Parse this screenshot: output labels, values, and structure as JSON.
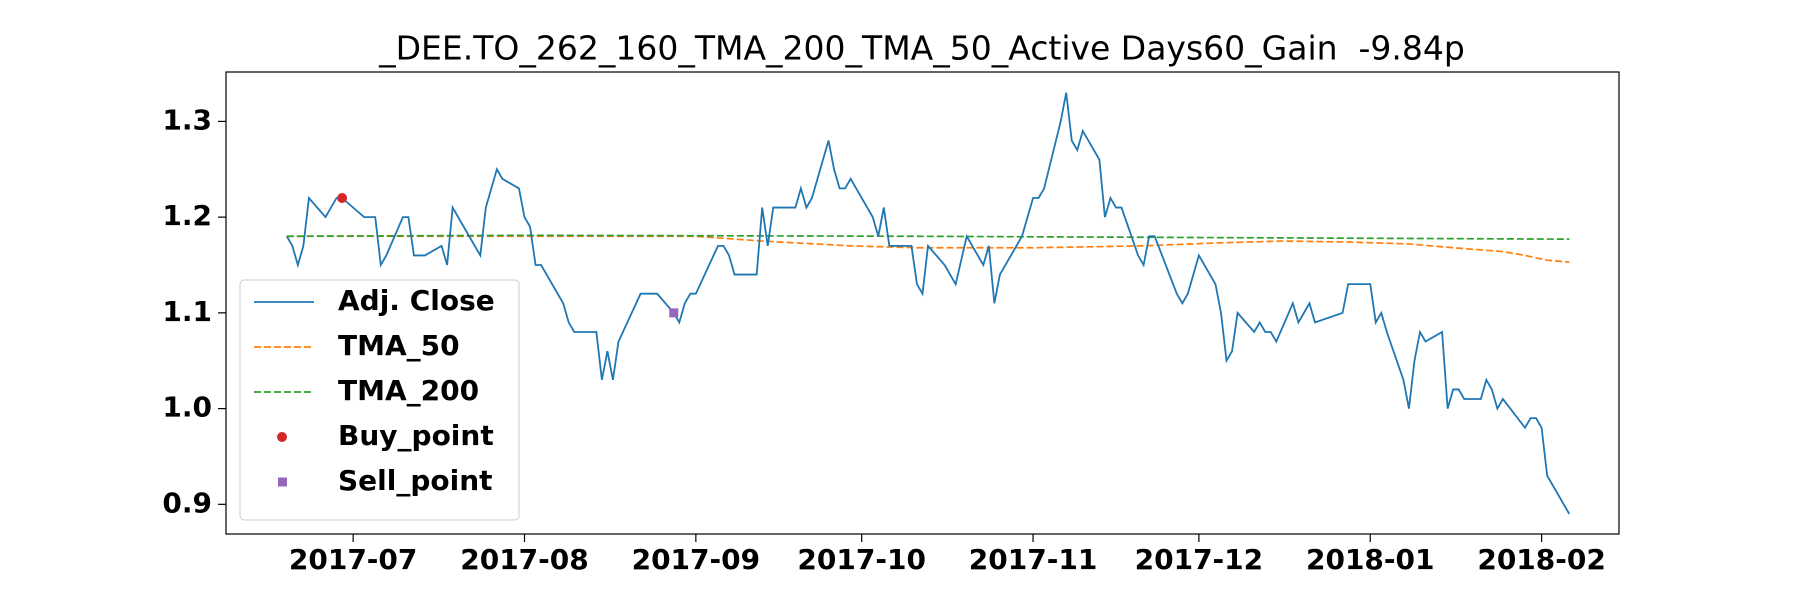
{
  "chart_data": {
    "type": "line",
    "title": "_DEE.TO_262_160_TMA_200_TMA_50_Active Days60_Gain  -9.84p",
    "xlim": [
      17325,
      17577
    ],
    "xticks": [
      {
        "value": 17348,
        "label": "2017-07"
      },
      {
        "value": 17379,
        "label": "2017-08"
      },
      {
        "value": 17410,
        "label": "2017-09"
      },
      {
        "value": 17440,
        "label": "2017-10"
      },
      {
        "value": 17471,
        "label": "2017-11"
      },
      {
        "value": 17501,
        "label": "2017-12"
      },
      {
        "value": 17532,
        "label": "2018-01"
      },
      {
        "value": 17563,
        "label": "2018-02"
      }
    ],
    "ylim": [
      0.869,
      1.3516
    ],
    "yticks": [
      0.9,
      {
        "value": 1,
        "label": "1.0"
      },
      1.1,
      1.2,
      1.3
    ],
    "grid": false,
    "legend": "lower left",
    "series": [
      {
        "name": "Adj. Close",
        "color": "#1f77b4",
        "style": "solid",
        "x": [
          17336,
          17337,
          17338,
          17339,
          17340,
          17343,
          17345,
          17346,
          17350,
          17352,
          17353,
          17354,
          17357,
          17358,
          17359,
          17361,
          17364,
          17365,
          17366,
          17371,
          17372,
          17374,
          17375,
          17378,
          17379,
          17380,
          17381,
          17382,
          17386,
          17387,
          17388,
          17392,
          17393,
          17394,
          17395,
          17396,
          17400,
          17403,
          17406,
          17407,
          17408,
          17409,
          17410,
          17414,
          17415,
          17416,
          17417,
          17421,
          17422,
          17423,
          17424,
          17428,
          17429,
          17430,
          17431,
          17434,
          17435,
          17436,
          17437,
          17438,
          17442,
          17443,
          17444,
          17445,
          17449,
          17450,
          17451,
          17452,
          17455,
          17457,
          17459,
          17462,
          17463,
          17464,
          17465,
          17469,
          17471,
          17472,
          17473,
          17476,
          17477,
          17478,
          17479,
          17480,
          17483,
          17484,
          17485,
          17486,
          17487,
          17490,
          17491,
          17492,
          17493,
          17497,
          17498,
          17499,
          17501,
          17504,
          17505,
          17506,
          17507,
          17508,
          17511,
          17512,
          17513,
          17514,
          17515,
          17518,
          17519,
          17521,
          17522,
          17527,
          17528,
          17532,
          17533,
          17534,
          17535,
          17538,
          17539,
          17540,
          17541,
          17542,
          17545,
          17546,
          17547,
          17548,
          17549,
          17552,
          17553,
          17554,
          17555,
          17556,
          17560,
          17561,
          17562,
          17563,
          17564,
          17568
        ],
        "values": [
          1.18,
          1.17,
          1.15,
          1.17,
          1.22,
          1.2,
          1.22,
          1.22,
          1.2,
          1.2,
          1.15,
          1.16,
          1.2,
          1.2,
          1.16,
          1.16,
          1.17,
          1.15,
          1.21,
          1.16,
          1.21,
          1.25,
          1.24,
          1.23,
          1.2,
          1.19,
          1.15,
          1.15,
          1.11,
          1.09,
          1.08,
          1.08,
          1.03,
          1.06,
          1.03,
          1.07,
          1.12,
          1.12,
          1.1,
          1.09,
          1.11,
          1.12,
          1.12,
          1.17,
          1.17,
          1.16,
          1.14,
          1.14,
          1.21,
          1.17,
          1.21,
          1.21,
          1.23,
          1.21,
          1.22,
          1.28,
          1.25,
          1.23,
          1.23,
          1.24,
          1.2,
          1.18,
          1.21,
          1.17,
          1.17,
          1.13,
          1.12,
          1.17,
          1.15,
          1.13,
          1.18,
          1.15,
          1.17,
          1.11,
          1.14,
          1.18,
          1.22,
          1.22,
          1.23,
          1.3,
          1.33,
          1.28,
          1.27,
          1.29,
          1.26,
          1.2,
          1.22,
          1.21,
          1.21,
          1.16,
          1.15,
          1.18,
          1.18,
          1.12,
          1.11,
          1.12,
          1.16,
          1.13,
          1.1,
          1.05,
          1.06,
          1.1,
          1.08,
          1.09,
          1.08,
          1.08,
          1.07,
          1.11,
          1.09,
          1.11,
          1.09,
          1.1,
          1.13,
          1.13,
          1.09,
          1.1,
          1.08,
          1.03,
          1.0,
          1.05,
          1.08,
          1.07,
          1.08,
          1.0,
          1.02,
          1.02,
          1.01,
          1.01,
          1.03,
          1.02,
          1.0,
          1.01,
          0.98,
          0.99,
          0.99,
          0.98,
          0.93,
          0.89
        ]
      },
      {
        "name": "TMA_50",
        "color": "#ff7f0e",
        "style": "dashed",
        "x": [
          17336,
          17410,
          17422,
          17438,
          17450,
          17471,
          17491,
          17504,
          17516,
          17528,
          17539,
          17547,
          17556,
          17560,
          17564,
          17568
        ],
        "values": [
          1.18,
          1.18,
          1.175,
          1.17,
          1.168,
          1.168,
          1.17,
          1.173,
          1.175,
          1.174,
          1.172,
          1.168,
          1.164,
          1.16,
          1.155,
          1.153
        ]
      },
      {
        "name": "TMA_200",
        "color": "#2ca02c",
        "style": "dashed",
        "x": [
          17336,
          17380,
          17450,
          17568
        ],
        "values": [
          1.18,
          1.181,
          1.18,
          1.177
        ]
      },
      {
        "name": "Buy_point",
        "color": "#d62728",
        "marker": "circle",
        "x": [
          17346
        ],
        "values": [
          1.22
        ]
      },
      {
        "name": "Sell_point",
        "color": "#9467bd",
        "marker": "square",
        "x": [
          17406
        ],
        "values": [
          1.1
        ]
      }
    ]
  }
}
